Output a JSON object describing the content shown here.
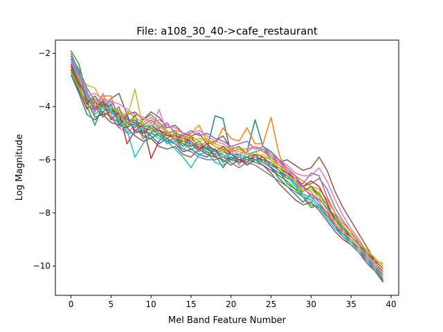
{
  "chart_data": {
    "type": "line",
    "title": "File: a108_30_40->cafe_restaurant",
    "xlabel": "Mel Band Feature Number",
    "ylabel": "Log Magnitude",
    "xlim": [
      -1.95,
      40.95
    ],
    "ylim": [
      -11.1,
      -1.5
    ],
    "xticks": [
      0,
      5,
      10,
      15,
      20,
      25,
      30,
      35,
      40
    ],
    "xtick_labels": [
      "0",
      "5",
      "10",
      "15",
      "20",
      "25",
      "30",
      "35",
      "40"
    ],
    "yticks": [
      -10,
      -8,
      -6,
      -4,
      -2
    ],
    "ytick_labels": [
      "−10",
      "−8",
      "−6",
      "−4",
      "−2"
    ],
    "grid": false,
    "legend": "none",
    "colors": [
      "#1f77b4",
      "#ff7f0e",
      "#2ca02c",
      "#d62728",
      "#9467bd",
      "#8c564b",
      "#e377c2",
      "#7f7f7f",
      "#bcbd22",
      "#17becf"
    ],
    "x": [
      0,
      1,
      2,
      3,
      4,
      5,
      6,
      7,
      8,
      9,
      10,
      11,
      12,
      13,
      14,
      15,
      16,
      17,
      18,
      19,
      20,
      21,
      22,
      23,
      24,
      25,
      26,
      27,
      28,
      29,
      30,
      31,
      32,
      33,
      34,
      35,
      36,
      37,
      38,
      39
    ],
    "series": [
      {
        "values": [
          -2.3,
          -3.0,
          -3.7,
          -4.0,
          -3.9,
          -4.1,
          -4.3,
          -4.5,
          -4.6,
          -4.8,
          -4.9,
          -4.9,
          -5.0,
          -5.2,
          -5.3,
          -5.4,
          -5.5,
          -5.6,
          -4.35,
          -4.45,
          -5.8,
          -5.8,
          -5.7,
          -4.5,
          -5.5,
          -5.7,
          -6.0,
          -6.4,
          -6.8,
          -7.1,
          -7.3,
          -7.5,
          -7.8,
          -8.2,
          -8.6,
          -8.9,
          -9.2,
          -9.6,
          -9.9,
          -10.2
        ]
      },
      {
        "values": [
          -2.4,
          -3.1,
          -3.6,
          -3.8,
          -4.1,
          -4.0,
          -4.4,
          -4.4,
          -4.7,
          -4.7,
          -4.8,
          -5.0,
          -5.1,
          -5.1,
          -5.2,
          -5.0,
          -4.7,
          -5.3,
          -5.4,
          -4.8,
          -5.2,
          -5.3,
          -4.8,
          -5.4,
          -5.4,
          -4.4,
          -5.8,
          -6.5,
          -6.9,
          -7.0,
          -7.2,
          -7.6,
          -8.1,
          -8.3,
          -8.6,
          -8.8,
          -9.1,
          -9.4,
          -9.8,
          -9.9
        ]
      },
      {
        "values": [
          -1.9,
          -2.4,
          -3.6,
          -3.9,
          -4.0,
          -4.2,
          -4.1,
          -4.6,
          -4.5,
          -5.0,
          -4.8,
          -5.1,
          -5.3,
          -5.2,
          -5.4,
          -5.6,
          -5.5,
          -5.7,
          -5.8,
          -6.3,
          -5.9,
          -6.0,
          -5.9,
          -6.1,
          -6.2,
          -6.4,
          -6.6,
          -6.8,
          -7.1,
          -7.4,
          -7.8,
          -7.7,
          -8.0,
          -8.4,
          -8.8,
          -9.0,
          -9.3,
          -9.6,
          -10.0,
          -10.3
        ]
      },
      {
        "values": [
          -2.7,
          -3.4,
          -4.1,
          -3.8,
          -4.3,
          -4.2,
          -4.5,
          -4.4,
          -4.9,
          -4.7,
          -5.95,
          -5.3,
          -5.0,
          -5.2,
          -5.5,
          -5.1,
          -5.6,
          -5.5,
          -5.9,
          -5.7,
          -5.8,
          -6.0,
          -5.9,
          -5.8,
          -6.1,
          -6.3,
          -6.5,
          -6.6,
          -6.9,
          -7.2,
          -7.0,
          -7.4,
          -7.9,
          -8.5,
          -8.7,
          -8.9,
          -9.2,
          -9.5,
          -9.8,
          -10.1
        ]
      },
      {
        "values": [
          -2.2,
          -2.9,
          -3.9,
          -4.2,
          -3.7,
          -4.3,
          -4.0,
          -4.8,
          -4.6,
          -5.2,
          -5.0,
          -4.8,
          -5.4,
          -5.3,
          -5.0,
          -5.4,
          -5.7,
          -5.5,
          -5.6,
          -5.9,
          -6.0,
          -5.8,
          -6.2,
          -6.0,
          -5.9,
          -6.2,
          -6.4,
          -6.7,
          -6.8,
          -6.9,
          -6.5,
          -6.6,
          -7.4,
          -8.0,
          -8.7,
          -9.1,
          -9.4,
          -9.8,
          -10.1,
          -10.5
        ]
      },
      {
        "values": [
          -2.6,
          -3.3,
          -3.9,
          -3.6,
          -4.0,
          -3.7,
          -3.5,
          -4.3,
          -4.2,
          -4.5,
          -4.2,
          -4.4,
          -4.8,
          -4.7,
          -5.0,
          -5.1,
          -5.0,
          -5.4,
          -5.3,
          -5.1,
          -5.6,
          -5.5,
          -5.8,
          -5.7,
          -5.6,
          -5.9,
          -6.1,
          -6.0,
          -6.2,
          -6.4,
          -6.3,
          -5.9,
          -6.4,
          -7.2,
          -7.8,
          -8.3,
          -8.8,
          -9.3,
          -9.8,
          -10.6
        ]
      },
      {
        "values": [
          -2.1,
          -2.8,
          -3.4,
          -4.2,
          -3.5,
          -4.3,
          -4.8,
          -5.0,
          -4.7,
          -4.9,
          -5.0,
          -4.1,
          -5.0,
          -5.3,
          -5.6,
          -5.4,
          -5.5,
          -5.8,
          -5.9,
          -5.7,
          -5.6,
          -6.2,
          -5.7,
          -6.0,
          -6.1,
          -6.3,
          -6.0,
          -6.2,
          -6.5,
          -6.6,
          -6.6,
          -6.3,
          -6.8,
          -7.5,
          -8.1,
          -8.6,
          -9.0,
          -9.5,
          -10.0,
          -10.4
        ]
      },
      {
        "values": [
          -2.5,
          -3.2,
          -3.5,
          -4.0,
          -4.4,
          -4.1,
          -4.5,
          -4.6,
          -4.8,
          -4.5,
          -4.3,
          -4.6,
          -4.9,
          -5.2,
          -5.1,
          -5.5,
          -5.4,
          -5.6,
          -5.7,
          -5.8,
          -6.0,
          -5.9,
          -6.0,
          -6.1,
          -6.2,
          -6.4,
          -6.5,
          -6.7,
          -6.8,
          -7.0,
          -6.9,
          -6.7,
          -7.1,
          -7.8,
          -8.3,
          -8.7,
          -9.2,
          -9.7,
          -10.0,
          -10.5
        ]
      },
      {
        "values": [
          -2.3,
          -2.9,
          -3.2,
          -3.3,
          -3.9,
          -4.3,
          -4.1,
          -4.4,
          -3.35,
          -4.8,
          -4.6,
          -5.0,
          -5.1,
          -4.9,
          -5.0,
          -5.3,
          -5.2,
          -5.2,
          -5.4,
          -5.5,
          -5.6,
          -5.7,
          -5.8,
          -5.7,
          -5.9,
          -6.0,
          -6.2,
          -6.5,
          -6.8,
          -7.3,
          -7.6,
          -7.2,
          -7.9,
          -8.2,
          -8.5,
          -8.8,
          -9.1,
          -9.4,
          -9.7,
          -10.0
        ]
      },
      {
        "values": [
          -2.2,
          -3.0,
          -3.8,
          -3.7,
          -4.0,
          -4.4,
          -4.6,
          -4.9,
          -5.9,
          -5.4,
          -5.0,
          -5.2,
          -5.3,
          -5.6,
          -5.9,
          -6.3,
          -5.8,
          -5.7,
          -6.1,
          -6.2,
          -6.0,
          -5.8,
          -5.9,
          -5.7,
          -5.6,
          -6.0,
          -6.3,
          -6.6,
          -6.9,
          -7.4,
          -7.5,
          -7.8,
          -8.2,
          -8.6,
          -8.9,
          -9.1,
          -9.3,
          -9.6,
          -10.0,
          -10.4
        ]
      },
      {
        "values": [
          -2.8,
          -3.5,
          -4.3,
          -4.5,
          -4.2,
          -3.9,
          -4.7,
          -4.3,
          -5.0,
          -4.9,
          -5.1,
          -5.4,
          -5.2,
          -5.4,
          -5.7,
          -5.6,
          -5.8,
          -5.9,
          -5.6,
          -6.1,
          -5.9,
          -6.1,
          -6.0,
          -5.9,
          -6.0,
          -6.3,
          -6.7,
          -7.0,
          -7.3,
          -7.6,
          -7.3,
          -7.6,
          -8.0,
          -8.5,
          -8.8,
          -9.0,
          -9.3,
          -9.7,
          -10.1,
          -10.3
        ]
      },
      {
        "values": [
          -2.0,
          -2.7,
          -3.5,
          -3.9,
          -3.6,
          -3.6,
          -4.6,
          -4.2,
          -4.4,
          -4.6,
          -4.4,
          -4.7,
          -5.0,
          -4.9,
          -5.3,
          -5.2,
          -5.5,
          -5.3,
          -5.5,
          -5.6,
          -5.7,
          -5.6,
          -5.6,
          -5.5,
          -5.7,
          -5.9,
          -6.2,
          -6.4,
          -6.6,
          -6.8,
          -7.0,
          -7.1,
          -7.5,
          -8.0,
          -8.4,
          -8.7,
          -9.1,
          -9.5,
          -9.9,
          -10.3
        ]
      },
      {
        "values": [
          -2.5,
          -3.2,
          -4.0,
          -4.7,
          -3.9,
          -4.0,
          -4.4,
          -4.8,
          -4.3,
          -5.1,
          -5.2,
          -5.0,
          -5.2,
          -5.0,
          -5.4,
          -5.5,
          -5.3,
          -5.6,
          -5.8,
          -5.6,
          -6.0,
          -6.1,
          -5.9,
          -6.0,
          -6.0,
          -6.1,
          -6.4,
          -6.9,
          -7.1,
          -7.2,
          -7.0,
          -7.3,
          -7.7,
          -8.2,
          -8.6,
          -8.9,
          -9.2,
          -9.6,
          -9.9,
          -10.2
        ]
      },
      {
        "values": [
          -2.4,
          -3.1,
          -3.7,
          -4.1,
          -3.8,
          -4.5,
          -4.2,
          -5.4,
          -4.9,
          -5.0,
          -4.7,
          -4.9,
          -5.1,
          -5.1,
          -5.2,
          -5.3,
          -5.6,
          -5.4,
          -5.7,
          -5.5,
          -5.8,
          -6.0,
          -6.1,
          -5.8,
          -5.9,
          -6.2,
          -6.3,
          -6.5,
          -6.7,
          -7.0,
          -6.8,
          -7.0,
          -7.6,
          -8.3,
          -8.7,
          -9.0,
          -9.4,
          -9.8,
          -10.1,
          -10.6
        ]
      },
      {
        "values": [
          -2.1,
          -2.6,
          -3.3,
          -3.8,
          -4.1,
          -3.8,
          -4.3,
          -4.5,
          -4.5,
          -4.7,
          -4.5,
          -4.8,
          -4.6,
          -5.0,
          -5.1,
          -4.9,
          -5.1,
          -5.0,
          -5.2,
          -5.3,
          -5.5,
          -5.4,
          -5.3,
          -5.6,
          -5.5,
          -5.8,
          -6.0,
          -6.3,
          -6.6,
          -7.0,
          -7.4,
          -7.5,
          -7.8,
          -8.1,
          -8.5,
          -8.9,
          -9.2,
          -9.5,
          -9.9,
          -10.2
        ]
      },
      {
        "values": [
          -2.6,
          -3.4,
          -3.8,
          -4.4,
          -4.3,
          -4.6,
          -4.7,
          -4.8,
          -5.1,
          -5.3,
          -5.2,
          -5.5,
          -5.6,
          -5.5,
          -5.8,
          -5.9,
          -5.6,
          -5.8,
          -5.9,
          -6.0,
          -6.2,
          -6.0,
          -6.2,
          -6.0,
          -6.2,
          -6.5,
          -6.9,
          -7.2,
          -7.5,
          -7.7,
          -7.6,
          -7.9,
          -8.3,
          -8.7,
          -9.0,
          -9.2,
          -9.5,
          -9.9,
          -10.2,
          -10.6
        ]
      },
      {
        "values": [
          -2.3,
          -3.0,
          -3.6,
          -3.5,
          -3.7,
          -3.8,
          -3.9,
          -4.1,
          -4.3,
          -4.4,
          -4.6,
          -4.5,
          -4.7,
          -4.8,
          -5.0,
          -5.0,
          -4.9,
          -5.1,
          -5.3,
          -5.4,
          -5.6,
          -5.8,
          -5.7,
          -5.5,
          -5.6,
          -5.8,
          -6.1,
          -6.4,
          -6.7,
          -7.1,
          -7.3,
          -7.6,
          -8.0,
          -8.4,
          -8.8,
          -9.1,
          -9.4,
          -9.7,
          -10.0,
          -10.4
        ]
      },
      {
        "values": [
          -2.0,
          -2.7,
          -3.8,
          -4.0,
          -4.2,
          -4.4,
          -4.8,
          -4.6,
          -4.7,
          -4.9,
          -5.0,
          -5.1,
          -5.3,
          -5.4,
          -5.6,
          -5.7,
          -5.9,
          -6.0,
          -6.0,
          -5.9,
          -6.1,
          -6.3,
          -6.1,
          -6.2,
          -6.4,
          -6.6,
          -6.8,
          -7.0,
          -7.2,
          -7.4,
          -7.7,
          -7.8,
          -8.1,
          -8.5,
          -8.9,
          -9.2,
          -9.5,
          -9.8,
          -10.2,
          -10.5
        ]
      },
      {
        "values": [
          -2.7,
          -3.3,
          -4.0,
          -3.9,
          -4.1,
          -4.0,
          -4.2,
          -4.7,
          -4.4,
          -4.6,
          -4.9,
          -4.7,
          -4.9,
          -5.2,
          -5.2,
          -5.1,
          -5.3,
          -5.2,
          -5.5,
          -5.7,
          -5.5,
          -5.6,
          -5.8,
          -5.9,
          -5.8,
          -6.0,
          -6.3,
          -6.6,
          -6.8,
          -7.2,
          -7.1,
          -7.4,
          -7.9,
          -8.3,
          -8.7,
          -9.0,
          -9.3,
          -9.6,
          -9.9,
          -10.3
        ]
      },
      {
        "values": [
          -2.2,
          -2.8,
          -3.5,
          -4.3,
          -4.0,
          -4.2,
          -4.5,
          -5.0,
          -5.0,
          -4.8,
          -4.7,
          -5.0,
          -5.4,
          -5.3,
          -5.5,
          -5.3,
          -5.7,
          -5.5,
          -5.7,
          -5.9,
          -5.8,
          -5.9,
          -6.0,
          -6.0,
          -6.1,
          -6.2,
          -6.4,
          -6.6,
          -7.0,
          -7.3,
          -7.4,
          -7.7,
          -8.2,
          -8.6,
          -8.8,
          -9.1,
          -9.5,
          -9.8,
          -10.1,
          -10.5
        ]
      }
    ]
  }
}
